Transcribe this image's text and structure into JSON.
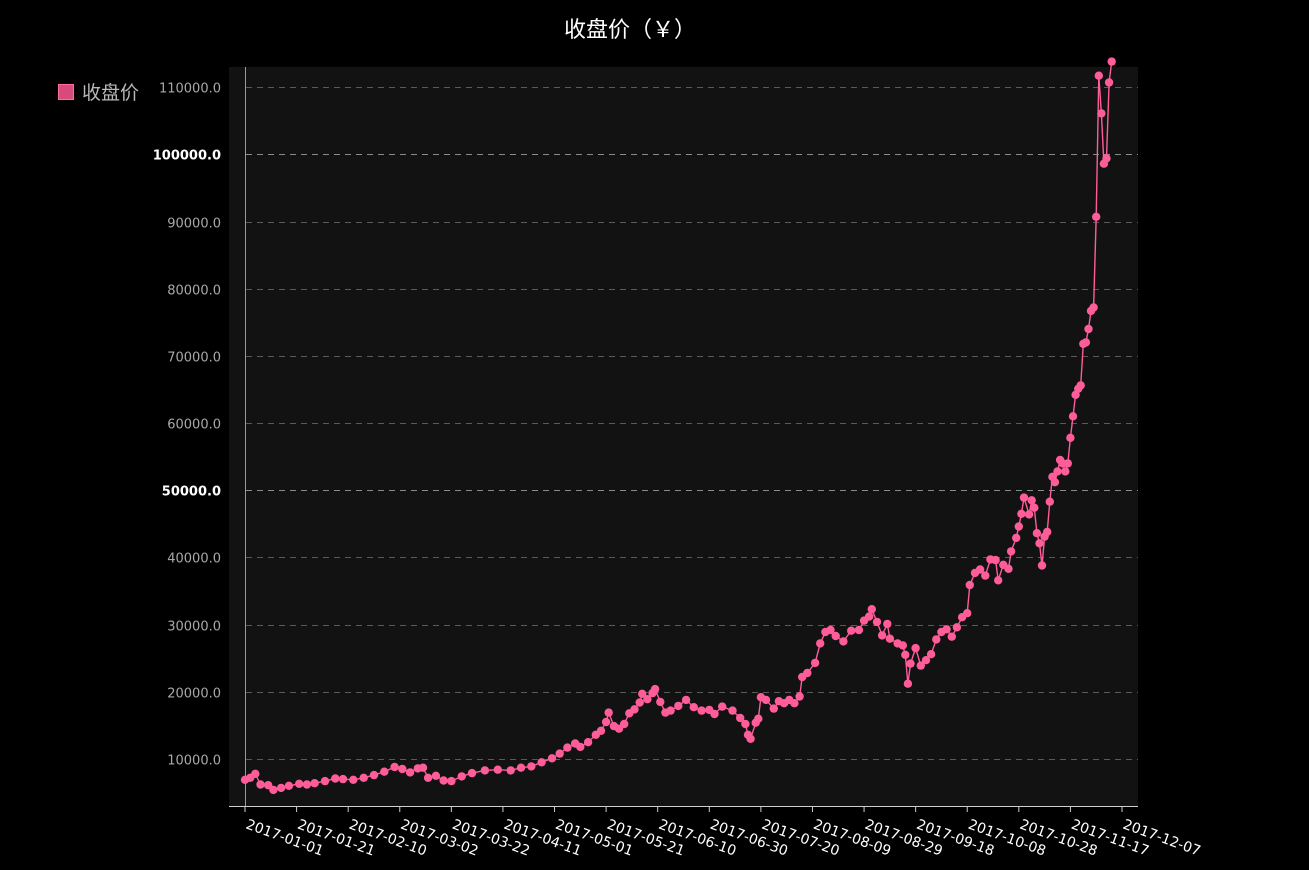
{
  "chart_data": {
    "type": "line",
    "title": "收盘价（￥）",
    "ylim": [
      3000,
      113000
    ],
    "yticks": [
      "10000.0",
      "20000.0",
      "30000.0",
      "40000.0",
      "50000.0",
      "60000.0",
      "70000.0",
      "80000.0",
      "90000.0",
      "100000.0",
      "110000.0"
    ],
    "xticks": [
      "2017-01-01",
      "2017-01-21",
      "2017-02-10",
      "2017-03-02",
      "2017-03-22",
      "2017-04-11",
      "2017-05-01",
      "2017-05-21",
      "2017-06-10",
      "2017-06-30",
      "2017-07-20",
      "2017-08-09",
      "2017-08-29",
      "2017-09-18",
      "2017-10-08",
      "2017-10-28",
      "2017-11-17",
      "2017-12-07"
    ],
    "grid": true,
    "legend_position": "top-left",
    "series": [
      {
        "name": "收盘价",
        "color": "#ff5c9a",
        "points": [
          [
            "2017-01-01",
            6900
          ],
          [
            "2017-01-03",
            7200
          ],
          [
            "2017-01-05",
            7800
          ],
          [
            "2017-01-07",
            6200
          ],
          [
            "2017-01-10",
            6100
          ],
          [
            "2017-01-12",
            5400
          ],
          [
            "2017-01-15",
            5700
          ],
          [
            "2017-01-18",
            6000
          ],
          [
            "2017-01-22",
            6300
          ],
          [
            "2017-01-25",
            6200
          ],
          [
            "2017-01-28",
            6400
          ],
          [
            "2017-02-01",
            6700
          ],
          [
            "2017-02-05",
            7100
          ],
          [
            "2017-02-08",
            7000
          ],
          [
            "2017-02-12",
            6900
          ],
          [
            "2017-02-16",
            7200
          ],
          [
            "2017-02-20",
            7600
          ],
          [
            "2017-02-24",
            8100
          ],
          [
            "2017-02-28",
            8800
          ],
          [
            "2017-03-03",
            8500
          ],
          [
            "2017-03-06",
            8000
          ],
          [
            "2017-03-09",
            8600
          ],
          [
            "2017-03-11",
            8700
          ],
          [
            "2017-03-13",
            7200
          ],
          [
            "2017-03-16",
            7500
          ],
          [
            "2017-03-19",
            6800
          ],
          [
            "2017-03-22",
            6700
          ],
          [
            "2017-03-26",
            7400
          ],
          [
            "2017-03-30",
            7900
          ],
          [
            "2017-04-04",
            8300
          ],
          [
            "2017-04-09",
            8400
          ],
          [
            "2017-04-14",
            8300
          ],
          [
            "2017-04-18",
            8700
          ],
          [
            "2017-04-22",
            8900
          ],
          [
            "2017-04-26",
            9500
          ],
          [
            "2017-04-30",
            10100
          ],
          [
            "2017-05-03",
            10800
          ],
          [
            "2017-05-06",
            11700
          ],
          [
            "2017-05-09",
            12300
          ],
          [
            "2017-05-11",
            11800
          ],
          [
            "2017-05-14",
            12500
          ],
          [
            "2017-05-17",
            13600
          ],
          [
            "2017-05-19",
            14200
          ],
          [
            "2017-05-21",
            15500
          ],
          [
            "2017-05-22",
            16900
          ],
          [
            "2017-05-24",
            14900
          ],
          [
            "2017-05-26",
            14500
          ],
          [
            "2017-05-28",
            15200
          ],
          [
            "2017-05-30",
            16800
          ],
          [
            "2017-06-01",
            17400
          ],
          [
            "2017-06-03",
            18400
          ],
          [
            "2017-06-04",
            19700
          ],
          [
            "2017-06-06",
            18900
          ],
          [
            "2017-06-08",
            19800
          ],
          [
            "2017-06-09",
            20400
          ],
          [
            "2017-06-11",
            18500
          ],
          [
            "2017-06-13",
            16900
          ],
          [
            "2017-06-15",
            17200
          ],
          [
            "2017-06-18",
            17900
          ],
          [
            "2017-06-21",
            18800
          ],
          [
            "2017-06-24",
            17700
          ],
          [
            "2017-06-27",
            17200
          ],
          [
            "2017-06-30",
            17300
          ],
          [
            "2017-07-02",
            16700
          ],
          [
            "2017-07-05",
            17800
          ],
          [
            "2017-07-09",
            17200
          ],
          [
            "2017-07-12",
            16100
          ],
          [
            "2017-07-14",
            15200
          ],
          [
            "2017-07-15",
            13600
          ],
          [
            "2017-07-16",
            13000
          ],
          [
            "2017-07-18",
            15400
          ],
          [
            "2017-07-19",
            16000
          ],
          [
            "2017-07-20",
            19200
          ],
          [
            "2017-07-22",
            18800
          ],
          [
            "2017-07-25",
            17500
          ],
          [
            "2017-07-27",
            18600
          ],
          [
            "2017-07-29",
            18300
          ],
          [
            "2017-07-31",
            18800
          ],
          [
            "2017-08-02",
            18300
          ],
          [
            "2017-08-04",
            19300
          ],
          [
            "2017-08-05",
            22200
          ],
          [
            "2017-08-07",
            22800
          ],
          [
            "2017-08-10",
            24300
          ],
          [
            "2017-08-12",
            27200
          ],
          [
            "2017-08-14",
            28900
          ],
          [
            "2017-08-16",
            29200
          ],
          [
            "2017-08-18",
            28300
          ],
          [
            "2017-08-21",
            27500
          ],
          [
            "2017-08-24",
            29100
          ],
          [
            "2017-08-27",
            29200
          ],
          [
            "2017-08-29",
            30600
          ],
          [
            "2017-08-31",
            31200
          ],
          [
            "2017-09-01",
            32300
          ],
          [
            "2017-09-03",
            30400
          ],
          [
            "2017-09-05",
            28400
          ],
          [
            "2017-09-07",
            30100
          ],
          [
            "2017-09-08",
            27900
          ],
          [
            "2017-09-11",
            27200
          ],
          [
            "2017-09-13",
            26900
          ],
          [
            "2017-09-14",
            25500
          ],
          [
            "2017-09-15",
            21200
          ],
          [
            "2017-09-16",
            24200
          ],
          [
            "2017-09-18",
            26500
          ],
          [
            "2017-09-20",
            23900
          ],
          [
            "2017-09-22",
            24700
          ],
          [
            "2017-09-24",
            25600
          ],
          [
            "2017-09-26",
            27800
          ],
          [
            "2017-09-28",
            28900
          ],
          [
            "2017-09-30",
            29300
          ],
          [
            "2017-10-02",
            28200
          ],
          [
            "2017-10-04",
            29600
          ],
          [
            "2017-10-06",
            31100
          ],
          [
            "2017-10-08",
            31700
          ],
          [
            "2017-10-09",
            35900
          ],
          [
            "2017-10-11",
            37700
          ],
          [
            "2017-10-13",
            38200
          ],
          [
            "2017-10-15",
            37300
          ],
          [
            "2017-10-17",
            39700
          ],
          [
            "2017-10-19",
            39600
          ],
          [
            "2017-10-20",
            36600
          ],
          [
            "2017-10-22",
            38900
          ],
          [
            "2017-10-24",
            38300
          ],
          [
            "2017-10-25",
            40900
          ],
          [
            "2017-10-27",
            42900
          ],
          [
            "2017-10-28",
            44600
          ],
          [
            "2017-10-29",
            46500
          ],
          [
            "2017-10-30",
            48900
          ],
          [
            "2017-11-01",
            46400
          ],
          [
            "2017-11-02",
            48500
          ],
          [
            "2017-11-03",
            47400
          ],
          [
            "2017-11-04",
            43600
          ],
          [
            "2017-11-05",
            42100
          ],
          [
            "2017-11-06",
            38800
          ],
          [
            "2017-11-07",
            43100
          ],
          [
            "2017-11-08",
            43800
          ],
          [
            "2017-11-09",
            48300
          ],
          [
            "2017-11-10",
            52000
          ],
          [
            "2017-11-11",
            51200
          ],
          [
            "2017-11-12",
            52800
          ],
          [
            "2017-11-13",
            54500
          ],
          [
            "2017-11-14",
            54000
          ],
          [
            "2017-11-15",
            52800
          ],
          [
            "2017-11-16",
            54000
          ],
          [
            "2017-11-17",
            57800
          ],
          [
            "2017-11-18",
            61000
          ],
          [
            "2017-11-19",
            64200
          ],
          [
            "2017-11-20",
            65100
          ],
          [
            "2017-11-21",
            65600
          ],
          [
            "2017-11-22",
            71800
          ],
          [
            "2017-11-23",
            72000
          ],
          [
            "2017-11-24",
            74000
          ],
          [
            "2017-11-25",
            76700
          ],
          [
            "2017-11-26",
            77200
          ],
          [
            "2017-11-27",
            90700
          ],
          [
            "2017-11-28",
            111700
          ],
          [
            "2017-11-29",
            106100
          ],
          [
            "2017-11-30",
            98600
          ],
          [
            "2017-12-01",
            99400
          ],
          [
            "2017-12-02",
            110700
          ],
          [
            "2017-12-03",
            113800
          ]
        ]
      }
    ]
  }
}
